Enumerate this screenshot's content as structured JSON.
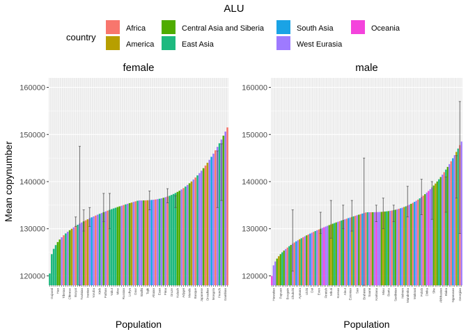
{
  "title": "ALU",
  "legend": {
    "title": "country",
    "items": [
      {
        "label": "Africa",
        "color": "#F8766D"
      },
      {
        "label": "America",
        "color": "#B79F00"
      },
      {
        "label": "Central Asia and Siberia",
        "color": "#4FAC00"
      },
      {
        "label": "East Asia",
        "color": "#1DB97F"
      },
      {
        "label": "South Asia",
        "color": "#1AA3E5"
      },
      {
        "label": "West Eurasia",
        "color": "#9E7AFF"
      },
      {
        "label": "Oceania",
        "color": "#F443DC"
      }
    ]
  },
  "chart_data": [
    {
      "type": "bar",
      "facet": "female",
      "xlabel": "Population",
      "ylabel": "Mean copynumber",
      "ylim": [
        118000,
        162000
      ],
      "yticks": [
        120000,
        130000,
        140000,
        150000,
        160000
      ],
      "ytick_labels": [
        "120000",
        "130000",
        "140000",
        "150000",
        "160000"
      ],
      "grid": true,
      "legend_position": "top",
      "n_bars": 90,
      "values_start": 120500,
      "values_end": 151500,
      "color_pattern": [
        "#1DB97F",
        "#1DB97F",
        "#1DB97F",
        "#1DB97F",
        "#4FAC00",
        "#4FAC00",
        "#9E7AFF",
        "#F8766D",
        "#1DB97F",
        "#9E7AFF",
        "#4FAC00",
        "#B79F00",
        "#9E7AFF",
        "#F8766D",
        "#1DB97F",
        "#9E7AFF",
        "#9E7AFF",
        "#4FAC00",
        "#F8766D",
        "#B79F00",
        "#9E7AFF",
        "#1AA3E5",
        "#9E7AFF",
        "#F8766D",
        "#9E7AFF",
        "#1DB97F",
        "#9E7AFF",
        "#4FAC00",
        "#9E7AFF",
        "#F8766D"
      ],
      "error_bars": [
        {
          "index": 13,
          "low": 130500,
          "high": 132500
        },
        {
          "index": 15,
          "low": 116000,
          "high": 147500
        },
        {
          "index": 17,
          "low": 129500,
          "high": 134000
        },
        {
          "index": 20,
          "low": 130500,
          "high": 134500
        },
        {
          "index": 27,
          "low": 131500,
          "high": 137500
        },
        {
          "index": 30,
          "low": 130000,
          "high": 137500
        },
        {
          "index": 50,
          "low": 134000,
          "high": 138000
        },
        {
          "index": 59,
          "low": 135500,
          "high": 138500
        },
        {
          "index": 63,
          "low": 134500,
          "high": 137000
        },
        {
          "index": 84,
          "low": 134500,
          "high": 146500
        },
        {
          "index": 86,
          "low": 136000,
          "high": 148000
        }
      ],
      "tick_labels": [
        "Gujarati",
        "Han",
        "Tibetan",
        "Chinese",
        "Buryat",
        "Tuvinian",
        "Iranian",
        "Yoruba",
        "Kinh",
        "Pathan",
        "Yakut",
        "Mixe",
        "Russian",
        "Luhya",
        "Daur",
        "Sindhi",
        "Tajik",
        "Altaian",
        "Esan",
        "Pima",
        "Druze",
        "Kalash",
        "Adygei",
        "Mende",
        "Basque",
        "Japanese",
        "Orcadian",
        "Mongola",
        "French",
        "Gambian"
      ]
    },
    {
      "type": "bar",
      "facet": "male",
      "xlabel": "Population",
      "ylabel": "Mean copynumber",
      "ylim": [
        118000,
        162000
      ],
      "yticks": [
        120000,
        130000,
        140000,
        150000,
        160000
      ],
      "ytick_labels": [
        "120000",
        "130000",
        "140000",
        "150000",
        "160000"
      ],
      "grid": true,
      "legend_position": "top",
      "n_bars": 110,
      "values_start": 120000,
      "values_end": 148500,
      "color_pattern": [
        "#F443DC",
        "#9E7AFF",
        "#9E7AFF",
        "#4FAC00",
        "#B79F00",
        "#4FAC00",
        "#1DB97F",
        "#4FAC00",
        "#9E7AFF",
        "#F8766D",
        "#1DB97F",
        "#4FAC00",
        "#9E7AFF",
        "#F8766D",
        "#1AA3E5",
        "#9E7AFF",
        "#B79F00",
        "#1DB97F",
        "#F8766D",
        "#9E7AFF",
        "#4FAC00",
        "#F8766D",
        "#1AA3E5",
        "#9E7AFF",
        "#F8766D",
        "#1DB97F",
        "#9E7AFF",
        "#F8766D",
        "#4FAC00",
        "#9E7AFF"
      ],
      "error_bars": [
        {
          "index": 12,
          "low": 121000,
          "high": 134000
        },
        {
          "index": 28,
          "low": 129000,
          "high": 133500
        },
        {
          "index": 34,
          "low": 128000,
          "high": 136000
        },
        {
          "index": 41,
          "low": 130000,
          "high": 135000
        },
        {
          "index": 46,
          "low": 129500,
          "high": 136000
        },
        {
          "index": 53,
          "low": 118000,
          "high": 145000
        },
        {
          "index": 60,
          "low": 131500,
          "high": 135000
        },
        {
          "index": 64,
          "low": 130000,
          "high": 136500
        },
        {
          "index": 70,
          "low": 131500,
          "high": 135000
        },
        {
          "index": 78,
          "low": 132500,
          "high": 139000
        },
        {
          "index": 86,
          "low": 133000,
          "high": 140500
        },
        {
          "index": 92,
          "low": 132000,
          "high": 140000
        },
        {
          "index": 100,
          "low": 133500,
          "high": 141000
        },
        {
          "index": 106,
          "low": 136500,
          "high": 145500
        },
        {
          "index": 108,
          "low": 129000,
          "high": 157000
        }
      ],
      "tick_labels": [
        "Hawaiian",
        "Papuan",
        "Bougain",
        "Chukchi",
        "Aymara",
        "Ulchi",
        "Dai",
        "Even",
        "Finnish",
        "Mbuti",
        "Korean",
        "Aleut",
        "Estonian",
        "San",
        "Brahmin",
        "Saami",
        "Karitiana",
        "Miao",
        "Bantu",
        "Sardinian",
        "Itelmen",
        "Mandenka",
        "Makrani",
        "Polish",
        "Dinka",
        "She",
        "Abkhasian",
        "Biaka",
        "Nganasan",
        "Georgian"
      ]
    }
  ]
}
